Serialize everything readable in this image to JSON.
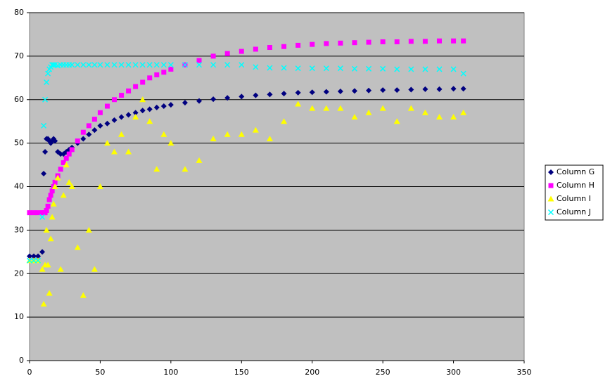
{
  "chart_data": {
    "type": "scatter",
    "x": [
      0,
      3,
      6,
      9,
      10,
      11,
      12,
      13,
      14,
      15,
      16,
      17,
      18,
      20,
      22,
      24,
      26,
      28,
      30,
      34,
      38,
      42,
      46,
      50,
      55,
      60,
      65,
      70,
      75,
      80,
      85,
      90,
      95,
      100,
      110,
      120,
      130,
      140,
      150,
      160,
      170,
      180,
      190,
      200,
      210,
      220,
      230,
      240,
      250,
      260,
      270,
      280,
      290,
      300,
      307
    ],
    "series": [
      {
        "name": "Column G",
        "color": "#000080",
        "marker": "diamond",
        "values": [
          24,
          24,
          24,
          25,
          43,
          48,
          51,
          51,
          50.5,
          50,
          50.5,
          51,
          50.5,
          48,
          47.5,
          47.5,
          48,
          48.5,
          49,
          50,
          51,
          52,
          53,
          54,
          54.5,
          55.3,
          56,
          56.5,
          57,
          57.5,
          57.8,
          58.2,
          58.5,
          58.8,
          59.3,
          59.7,
          60.1,
          60.4,
          60.7,
          61,
          61.2,
          61.4,
          61.6,
          61.7,
          61.8,
          61.9,
          62,
          62.1,
          62.2,
          62.2,
          62.3,
          62.4,
          62.4,
          62.5,
          62.5
        ]
      },
      {
        "name": "Column H",
        "color": "#ff00ff",
        "marker": "square",
        "values": [
          34,
          34,
          34,
          34,
          34,
          34,
          34.5,
          35.5,
          37,
          38,
          39,
          40,
          41,
          42.5,
          44,
          45.5,
          46.5,
          47.5,
          48.5,
          50.5,
          52.5,
          54,
          55.5,
          57,
          58.5,
          60,
          61,
          62,
          63,
          64,
          65,
          65.7,
          66.3,
          67,
          68,
          69,
          70,
          70.6,
          71.1,
          71.6,
          72,
          72.2,
          72.5,
          72.7,
          72.9,
          73,
          73.1,
          73.2,
          73.3,
          73.3,
          73.4,
          73.4,
          73.5,
          73.5,
          73.5
        ]
      },
      {
        "name": "Column I",
        "color": "#ffff00",
        "marker": "triangle",
        "values": [
          23,
          23,
          23,
          21,
          13,
          22,
          30,
          22,
          15.5,
          28,
          33,
          36,
          40,
          42,
          21,
          38,
          45,
          41,
          40,
          26,
          15,
          30,
          21,
          40,
          50,
          48,
          52,
          48,
          56,
          60,
          55,
          44,
          52,
          50,
          44,
          46,
          51,
          52,
          52,
          53,
          51,
          55,
          59,
          58,
          58,
          58,
          56,
          57,
          58,
          55,
          58,
          57,
          56,
          56,
          57
        ]
      },
      {
        "name": "Column J",
        "color": "#00ffff",
        "marker": "cross",
        "values": [
          23,
          23,
          23,
          33,
          54,
          60,
          64,
          66,
          67,
          67.5,
          68,
          68,
          68,
          67.8,
          68,
          68,
          68,
          68,
          68,
          68,
          68,
          68,
          68,
          68,
          68,
          68,
          68,
          68,
          68,
          68,
          68,
          68,
          68,
          68,
          68,
          68,
          68,
          68,
          68,
          67.5,
          67.3,
          67.3,
          67.2,
          67.2,
          67.2,
          67.2,
          67.1,
          67.1,
          67.1,
          67,
          67,
          67,
          67,
          67,
          66
        ]
      }
    ],
    "xlim": [
      0,
      350
    ],
    "xticks": [
      0,
      50,
      100,
      150,
      200,
      250,
      300,
      350
    ],
    "ylim": [
      0,
      80
    ],
    "yticks": [
      0,
      10,
      20,
      30,
      40,
      50,
      60,
      70,
      80
    ],
    "grid": true,
    "legend": "right"
  }
}
